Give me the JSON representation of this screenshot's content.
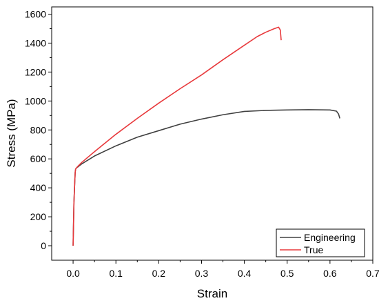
{
  "chart_data": {
    "type": "line",
    "title": "",
    "xlabel": "Strain",
    "ylabel": "Stress (MPa)",
    "xlim": [
      -0.05,
      0.7
    ],
    "ylim": [
      -100,
      1650
    ],
    "xticks": [
      0.0,
      0.1,
      0.2,
      0.3,
      0.4,
      0.5,
      0.6,
      0.7
    ],
    "xtick_labels": [
      "0.0",
      "0.1",
      "0.2",
      "0.3",
      "0.4",
      "0.5",
      "0.6",
      "0.7"
    ],
    "yticks": [
      0,
      200,
      400,
      600,
      800,
      1000,
      1200,
      1400,
      1600
    ],
    "ytick_labels": [
      "0",
      "200",
      "400",
      "600",
      "800",
      "1000",
      "1200",
      "1400",
      "1600"
    ],
    "grid": false,
    "legend_position": "bottom-right",
    "series": [
      {
        "name": "Engineering",
        "color": "#404040",
        "x": [
          0.0,
          0.002,
          0.004,
          0.005,
          0.006,
          0.008,
          0.01,
          0.02,
          0.05,
          0.1,
          0.15,
          0.2,
          0.25,
          0.3,
          0.35,
          0.4,
          0.45,
          0.5,
          0.55,
          0.6,
          0.615,
          0.62,
          0.623
        ],
        "y": [
          0,
          300,
          450,
          510,
          530,
          538,
          542,
          565,
          620,
          690,
          750,
          795,
          840,
          875,
          905,
          928,
          935,
          938,
          940,
          938,
          930,
          910,
          880
        ]
      },
      {
        "name": "True",
        "color": "#e8393c",
        "x": [
          0.0,
          0.002,
          0.004,
          0.005,
          0.006,
          0.008,
          0.01,
          0.02,
          0.05,
          0.1,
          0.15,
          0.2,
          0.25,
          0.3,
          0.35,
          0.4,
          0.43,
          0.45,
          0.47,
          0.48,
          0.484,
          0.486
        ],
        "y": [
          0,
          300,
          450,
          510,
          530,
          538,
          545,
          575,
          650,
          770,
          880,
          985,
          1085,
          1180,
          1285,
          1385,
          1445,
          1475,
          1500,
          1510,
          1490,
          1420
        ]
      }
    ]
  }
}
